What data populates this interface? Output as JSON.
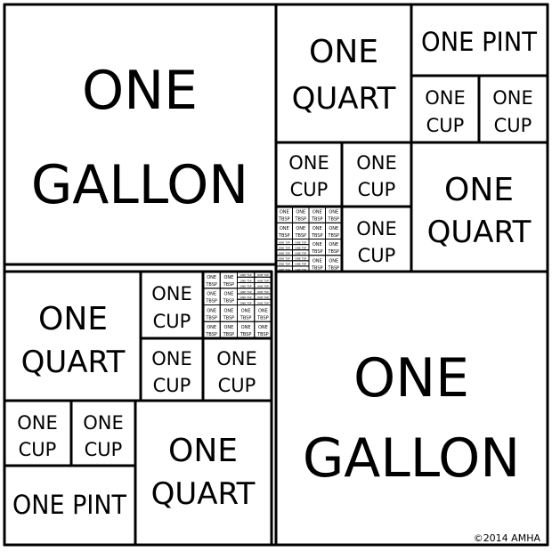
{
  "comic": {
    "tiles": {
      "gallon_top_left": [
        "ONE",
        "GALLON"
      ],
      "gallon_bottom_right": [
        "ONE",
        "GALLON"
      ],
      "q1": {
        "quart_a": [
          "ONE",
          "QUART"
        ],
        "pint": "ONE PINT",
        "cup_a": [
          "ONE",
          "CUP"
        ],
        "cup_b": [
          "ONE",
          "CUP"
        ],
        "cup_c": [
          "ONE",
          "CUP"
        ],
        "cup_d": [
          "ONE",
          "CUP"
        ],
        "cup_e": [
          "ONE",
          "CUP"
        ],
        "quart_b": [
          "ONE",
          "QUART"
        ]
      },
      "q3": {
        "quart_a": [
          "ONE",
          "QUART"
        ],
        "cup_a": [
          "ONE",
          "CUP"
        ],
        "cup_b": [
          "ONE",
          "CUP"
        ],
        "cup_c": [
          "ONE",
          "CUP"
        ],
        "cup_d": [
          "ONE",
          "CUP"
        ],
        "cup_e": [
          "ONE",
          "CUP"
        ],
        "pint": "ONE PINT",
        "quart_b": [
          "ONE",
          "QUART"
        ]
      },
      "tbsp": [
        "ONE",
        "TBSP"
      ],
      "tsp": "ONE TSP"
    },
    "signature": "©2014 AMHA",
    "ink_color": "#000000",
    "paper_color": "#ffffff"
  }
}
